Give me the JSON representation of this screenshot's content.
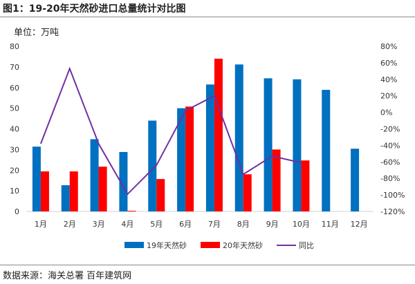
{
  "title": "图1：19-20年天然砂进口总量统计对比图",
  "unit_label": "单位：万吨",
  "source": "数据来源：海关总署 百年建筑网",
  "chart_data": {
    "type": "bar+line",
    "categories": [
      "1月",
      "2月",
      "3月",
      "4月",
      "5月",
      "6月",
      "7月",
      "8月",
      "9月",
      "10月",
      "11月",
      "12月"
    ],
    "series": [
      {
        "name": "19年天然砂",
        "type": "bar",
        "axis": "left",
        "color": "#0070C0",
        "values": [
          31.4,
          12.7,
          35.0,
          28.8,
          44.0,
          50.0,
          61.5,
          71.2,
          64.5,
          64.0,
          58.9,
          30.4
        ]
      },
      {
        "name": "20年天然砂",
        "type": "bar",
        "axis": "left",
        "color": "#FF0000",
        "values": [
          19.4,
          19.4,
          21.7,
          0.3,
          15.7,
          50.8,
          74.0,
          18.0,
          30.0,
          24.7,
          null,
          null
        ]
      },
      {
        "name": "同比",
        "type": "line",
        "axis": "right",
        "color": "#7030A0",
        "values": [
          -38,
          53,
          -38,
          -99,
          -64,
          2,
          20,
          -75,
          -53,
          -61,
          null,
          null
        ]
      }
    ],
    "ylim_left": [
      0,
      80
    ],
    "yticks_left": [
      "0",
      "10",
      "20",
      "30",
      "40",
      "50",
      "60",
      "70",
      "80"
    ],
    "ylim_right": [
      -120,
      80
    ],
    "yticks_right": [
      "-120%",
      "-100%",
      "-80%",
      "-60%",
      "-40%",
      "-20%",
      "0%",
      "20%",
      "40%",
      "60%",
      "80%"
    ],
    "legend": "bottom",
    "grid": false
  }
}
